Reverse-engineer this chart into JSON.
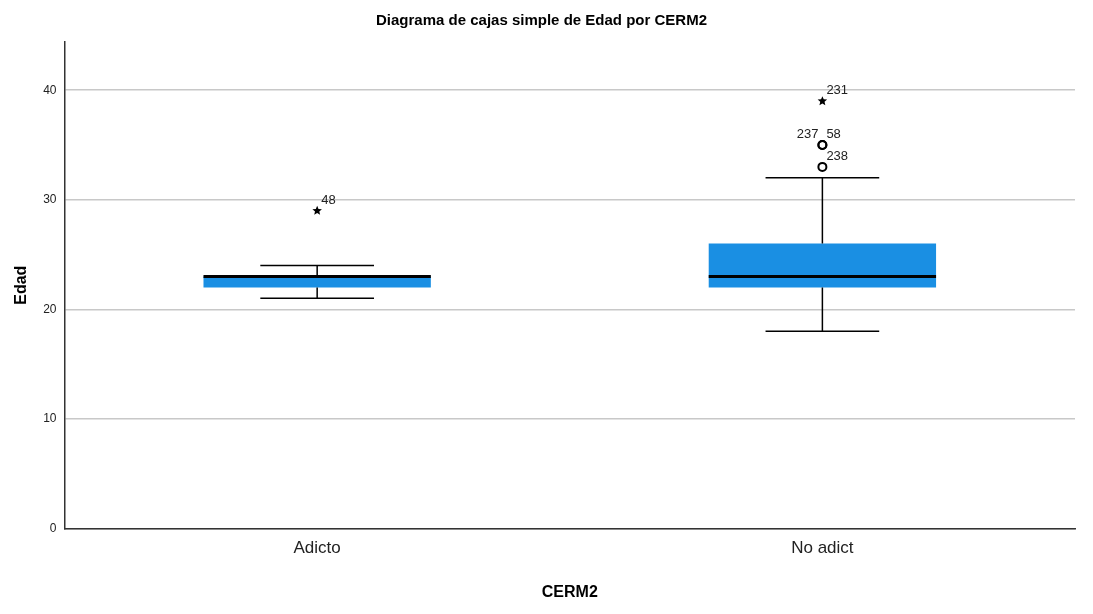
{
  "chart_data": {
    "type": "box",
    "title": "Diagrama de cajas simple de Edad por CERM2",
    "xlabel": "CERM2",
    "ylabel": "Edad",
    "categories": [
      "Adicto",
      "No adict"
    ],
    "series": [
      {
        "color": "#1a8fe3",
        "boxes": [
          {
            "low": 21,
            "q1": 22,
            "median": 23,
            "q3": 23,
            "high": 24
          },
          {
            "low": 18,
            "q1": 22,
            "median": 23,
            "q3": 26,
            "high": 32
          }
        ]
      },
      {
        "type": "scatter",
        "color": "#000000",
        "marker": "star",
        "x": [
          "Adicto",
          "No adict"
        ],
        "values": [
          29,
          39
        ]
      },
      {
        "type": "scatter",
        "color": "#000000",
        "marker": "circle",
        "x": [
          "No adict",
          "No adict",
          "No adict"
        ],
        "values": [
          35,
          35,
          33
        ]
      }
    ],
    "annotations": [
      {
        "text": "48",
        "x": "Adicto",
        "y": 29
      },
      {
        "text": "231",
        "x": "No adict",
        "y": 39
      },
      {
        "text": "237",
        "x": "No adict",
        "y": 35
      },
      {
        "text": "58",
        "x": "No adict",
        "y": 35
      },
      {
        "text": "238",
        "x": "No adict",
        "y": 33
      }
    ],
    "ylim": [
      0,
      44.4
    ],
    "yticks": [
      0,
      10,
      20,
      30,
      40
    ],
    "grid": "y",
    "legend": false
  }
}
